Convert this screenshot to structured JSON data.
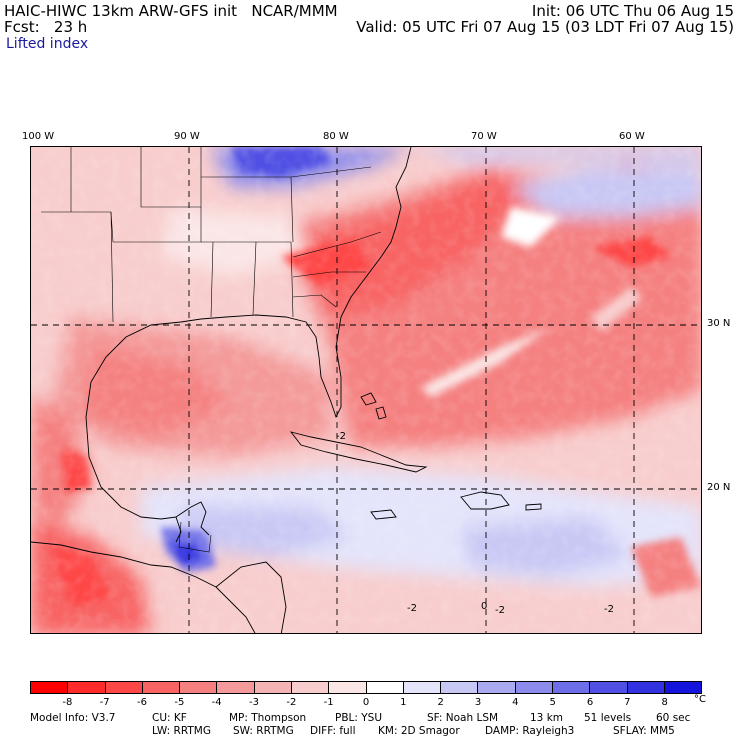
{
  "header": {
    "model_line": "HAIC-HIWC 13km ARW-GFS init   NCAR/MMM",
    "fcst_line": "Fcst:   23 h",
    "field_name": "Lifted index",
    "init_line": "Init: 06 UTC Thu 06 Aug 15",
    "valid_line": "Valid: 05 UTC Fri 07 Aug 15 (03 LDT Fri 07 Aug 15)"
  },
  "map": {
    "lon_labels": [
      "100 W",
      "90 W",
      "80 W",
      "70 W",
      "60 W"
    ],
    "lat_labels": [
      "30 N",
      "20 N"
    ],
    "contour_labels": [
      "-2",
      "-2",
      "-2",
      "-2",
      "0"
    ]
  },
  "colorbar": {
    "colors": [
      "#ff0000",
      "#ff2a2a",
      "#fe4747",
      "#f86464",
      "#f58080",
      "#f49a9a",
      "#f5b4b4",
      "#f8cdcd",
      "#fbe6e6",
      "#ffffff",
      "#e4e4fb",
      "#c8c8f5",
      "#aaaaf0",
      "#8c8cec",
      "#6e6ee8",
      "#5050e4",
      "#3232e0",
      "#1414dc"
    ],
    "ticks": [
      "-8",
      "-7",
      "-6",
      "-5",
      "-4",
      "-3",
      "-2",
      "-1",
      "0",
      "1",
      "2",
      "3",
      "4",
      "5",
      "6",
      "7",
      "8"
    ],
    "unit": "°C"
  },
  "model_info": {
    "line1": [
      "Model Info: V3.7",
      "CU: KF",
      "MP: Thompson",
      "PBL: YSU",
      "SF: Noah LSM",
      "13 km",
      "51 levels",
      "60 sec"
    ],
    "line2": [
      "LW: RRTMG",
      "SW: RRTMG",
      "DIFF: full",
      "KM: 2D Smagor",
      "DAMP: Rayleigh3",
      "SFLAY: MM5"
    ]
  }
}
